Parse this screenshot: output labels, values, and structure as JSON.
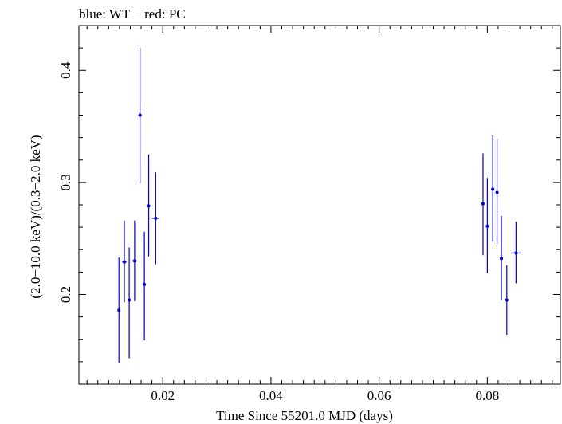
{
  "chart_data": {
    "type": "scatter",
    "title": "blue: WT − red: PC",
    "xlabel": "Time Since 55201.0 MJD (days)",
    "ylabel": "(2.0−10.0 keV)/(0.3−2.0 keV)",
    "xlim": [
      0.0045,
      0.0935
    ],
    "ylim": [
      0.12,
      0.44
    ],
    "x_ticks": [
      0.02,
      0.04,
      0.06,
      0.08
    ],
    "x_tick_labels": [
      "0.02",
      "0.04",
      "0.06",
      "0.08"
    ],
    "y_ticks": [
      0.2,
      0.3,
      0.4
    ],
    "y_tick_labels": [
      "0.2",
      "0.3",
      "0.4"
    ],
    "grid": false,
    "colors": {
      "WT": "#0000cc",
      "axes": "#000000"
    },
    "series": [
      {
        "points": [
          {
            "x": 0.0119,
            "y": 0.186,
            "ylo": 0.139,
            "yhi": 0.233,
            "xerr": 0.0002
          },
          {
            "x": 0.0129,
            "y": 0.229,
            "ylo": 0.193,
            "yhi": 0.266,
            "xerr": 0.0004
          },
          {
            "x": 0.0138,
            "y": 0.195,
            "ylo": 0.143,
            "yhi": 0.242,
            "xerr": 0.0002
          },
          {
            "x": 0.0148,
            "y": 0.23,
            "ylo": 0.194,
            "yhi": 0.266,
            "xerr": 0.0004
          },
          {
            "x": 0.0158,
            "y": 0.36,
            "ylo": 0.299,
            "yhi": 0.42,
            "xerr": 0.0003
          },
          {
            "x": 0.0166,
            "y": 0.209,
            "ylo": 0.159,
            "yhi": 0.256,
            "xerr": 0.0002
          },
          {
            "x": 0.0174,
            "y": 0.279,
            "ylo": 0.234,
            "yhi": 0.325,
            "xerr": 0.0004
          },
          {
            "x": 0.0187,
            "y": 0.268,
            "ylo": 0.227,
            "yhi": 0.309,
            "xerr": 0.0007
          },
          {
            "x": 0.0792,
            "y": 0.281,
            "ylo": 0.235,
            "yhi": 0.326,
            "xerr": 0.0002
          },
          {
            "x": 0.08,
            "y": 0.261,
            "ylo": 0.219,
            "yhi": 0.304,
            "xerr": 0.0002
          },
          {
            "x": 0.081,
            "y": 0.294,
            "ylo": 0.247,
            "yhi": 0.342,
            "xerr": 0.0003
          },
          {
            "x": 0.0818,
            "y": 0.291,
            "ylo": 0.245,
            "yhi": 0.339,
            "xerr": 0.0003
          },
          {
            "x": 0.0826,
            "y": 0.232,
            "ylo": 0.195,
            "yhi": 0.27,
            "xerr": 0.0003
          },
          {
            "x": 0.0836,
            "y": 0.195,
            "ylo": 0.164,
            "yhi": 0.226,
            "xerr": 0.0004
          },
          {
            "x": 0.0853,
            "y": 0.237,
            "ylo": 0.21,
            "yhi": 0.265,
            "xerr": 0.0009
          }
        ]
      }
    ]
  }
}
